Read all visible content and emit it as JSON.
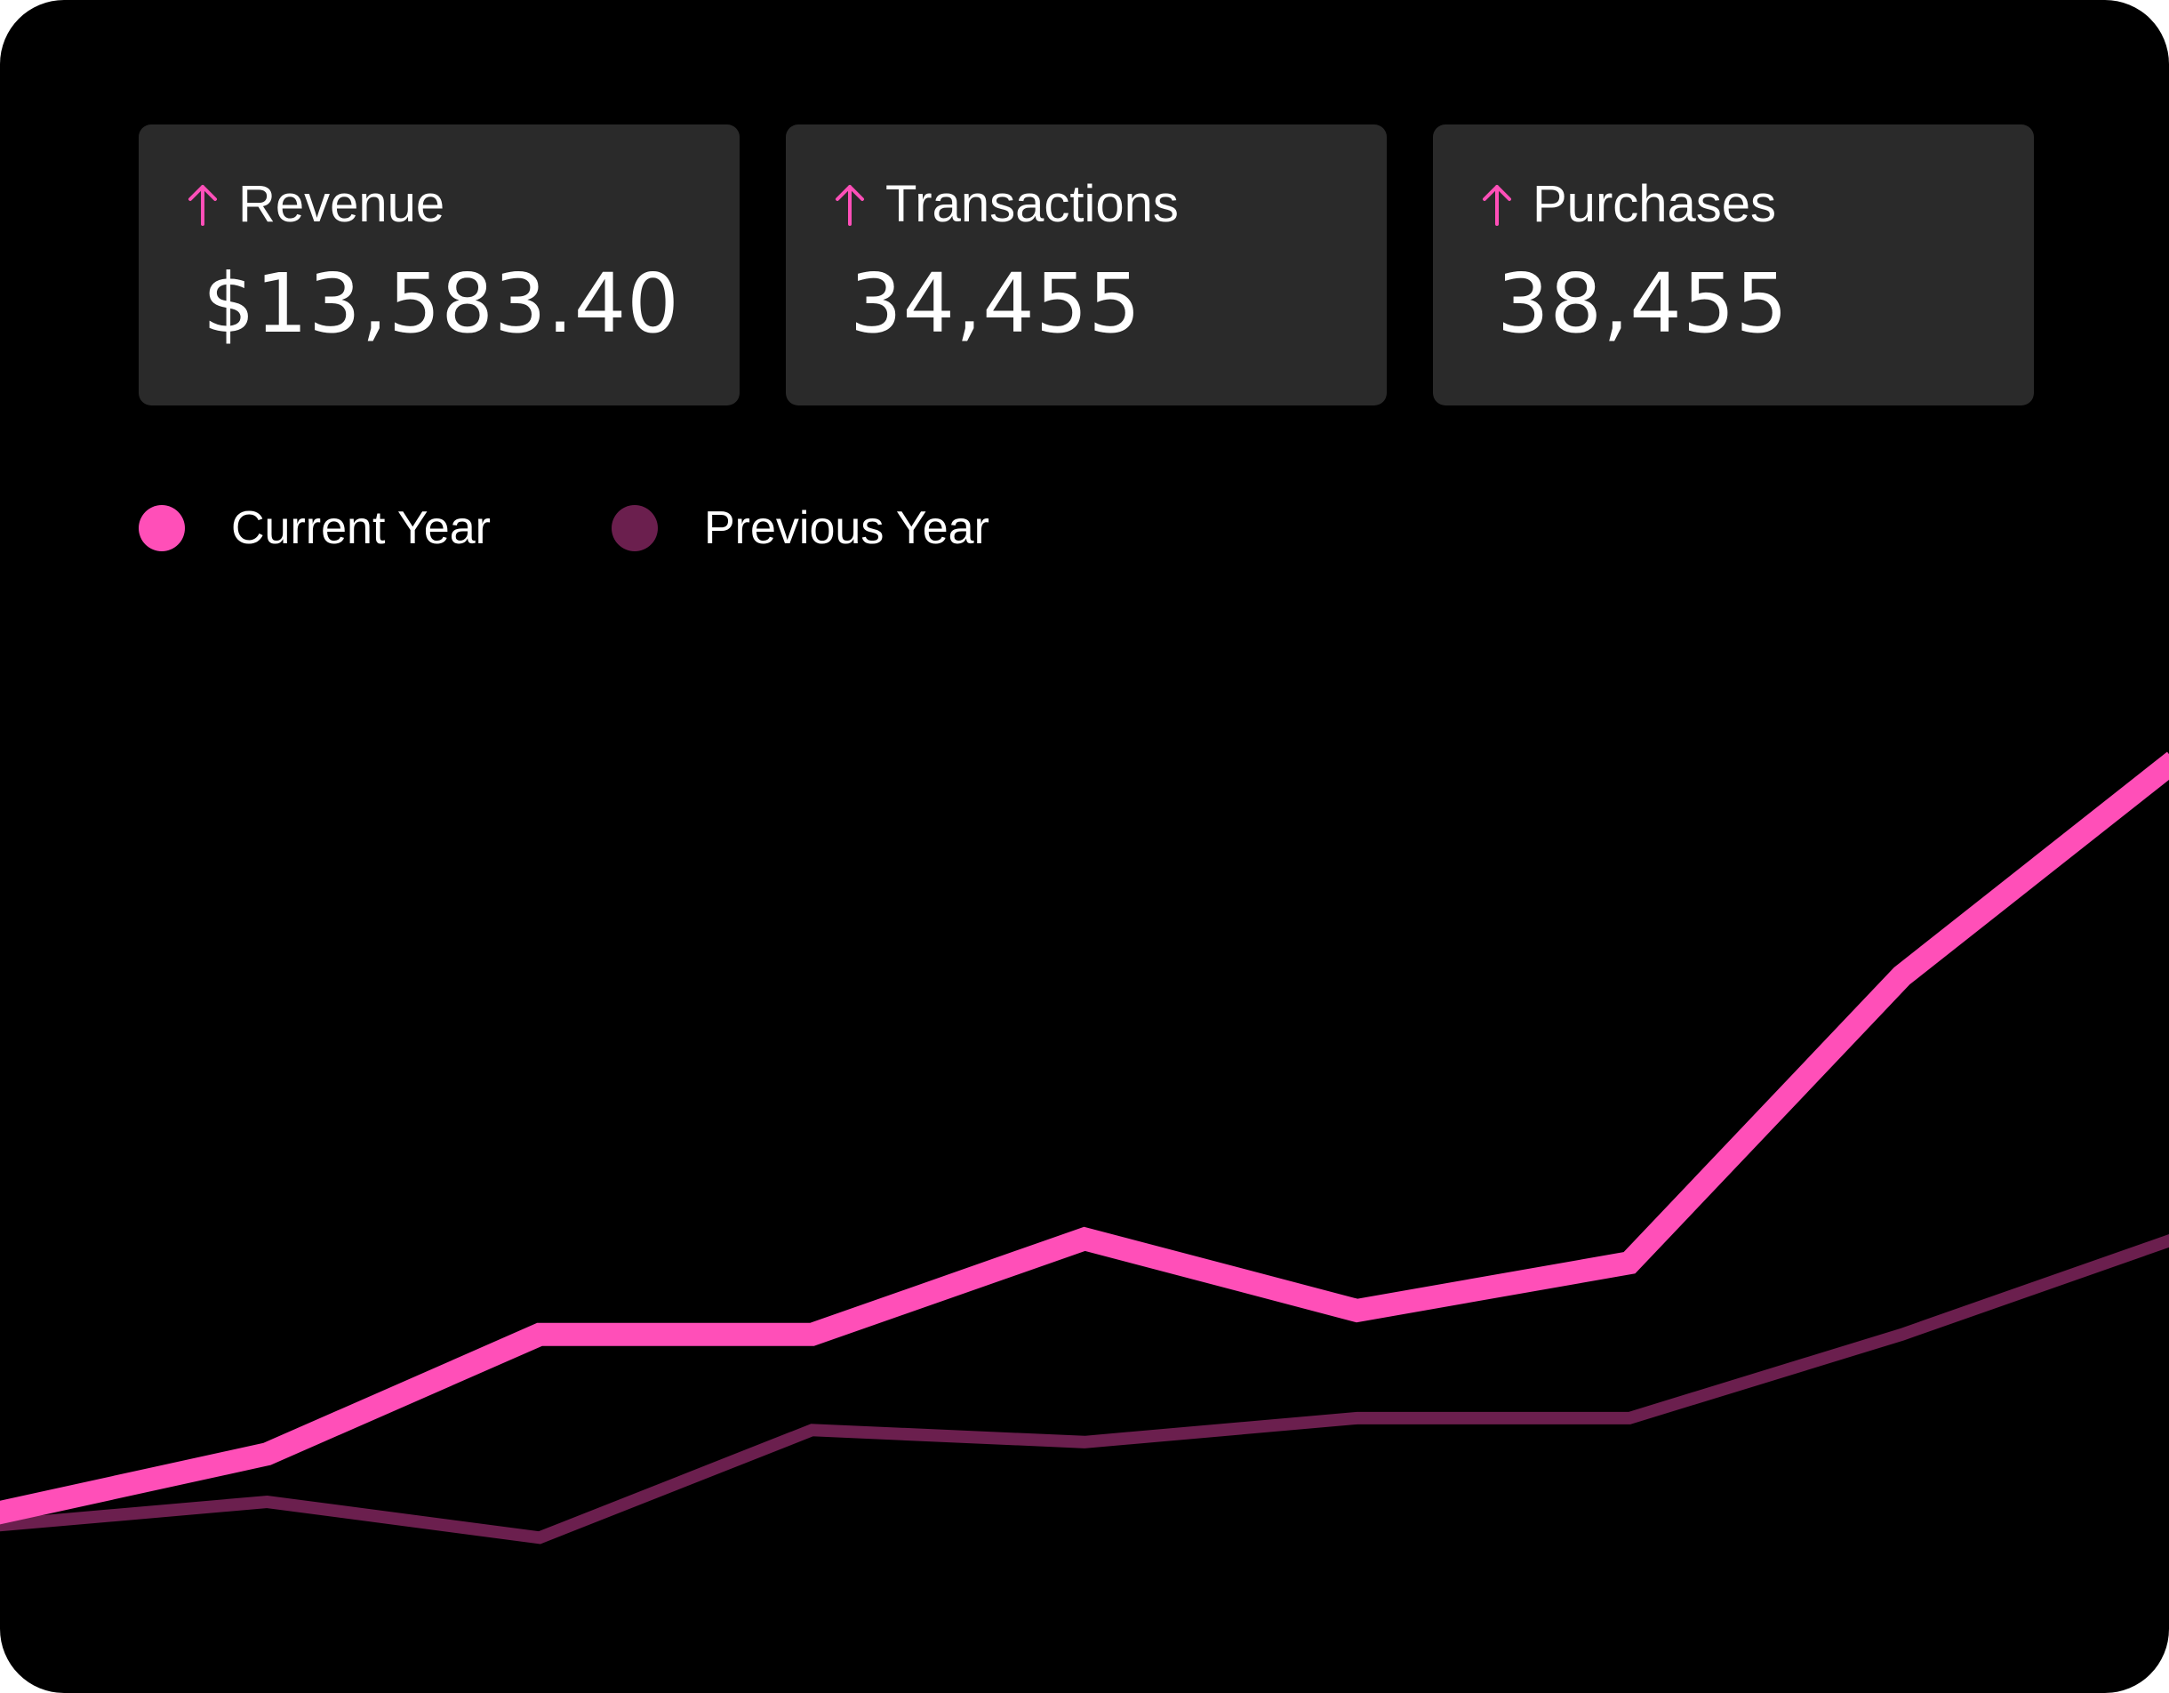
{
  "cards": [
    {
      "label": "Revenue",
      "value": "$13,583.40",
      "trend_icon": "arrow-up-icon"
    },
    {
      "label": "Transactions",
      "value": "34,455",
      "trend_icon": "arrow-up-icon"
    },
    {
      "label": "Purchases",
      "value": "38,455",
      "trend_icon": "arrow-up-icon"
    }
  ],
  "legend": [
    {
      "label": "Current Year",
      "color": "#ff4fb8"
    },
    {
      "label": "Previous Year",
      "color": "#6b1f4e"
    }
  ],
  "colors": {
    "background": "#000000",
    "card": "#2a2a2a",
    "accent": "#ff4fb8"
  },
  "chart_data": {
    "type": "line",
    "title": "",
    "xlabel": "",
    "ylabel": "",
    "grid": false,
    "legend_position": "top-left",
    "x": [
      0,
      1,
      2,
      3,
      4,
      5,
      6,
      7,
      8,
      9,
      10
    ],
    "ylim": [
      0,
      100
    ],
    "series": [
      {
        "name": "Current Year",
        "color": "#ff4fb8",
        "points": [
          [
            0,
            15
          ],
          [
            1,
            20
          ],
          [
            2,
            30
          ],
          [
            3,
            30
          ],
          [
            4,
            38
          ],
          [
            5,
            32
          ],
          [
            6,
            36
          ],
          [
            7,
            60
          ],
          [
            8,
            78
          ]
        ]
      },
      {
        "name": "Previous Year",
        "color": "#6b1f4e",
        "points": [
          [
            0,
            14
          ],
          [
            1,
            16
          ],
          [
            2,
            13
          ],
          [
            3,
            22
          ],
          [
            4,
            21
          ],
          [
            5,
            23
          ],
          [
            6,
            23
          ],
          [
            7,
            30
          ],
          [
            8,
            38
          ]
        ]
      }
    ]
  }
}
